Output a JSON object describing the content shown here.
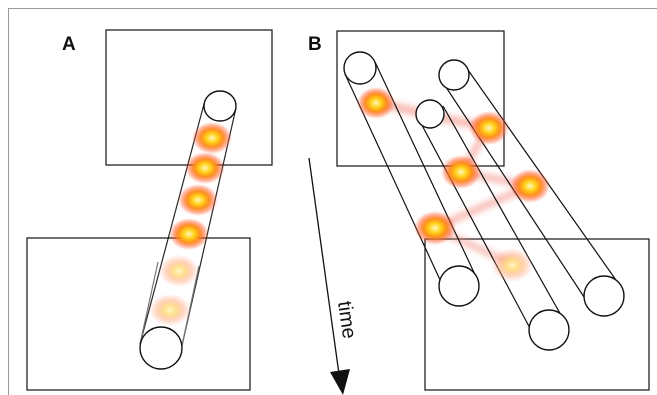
{
  "panels": {
    "a_label": "A",
    "b_label": "B"
  },
  "time_arrow": {
    "label": "time"
  },
  "colors": {
    "stroke": "#111111",
    "blob_core": "#fff6b0",
    "blob_mid": "#ffb400",
    "blob_outer": "#ff5a1e",
    "trail": "#f07a6a",
    "frame": "#9a9a9a"
  },
  "icons": [
    "box-outline",
    "tube-cylinder",
    "glowing-particle",
    "down-arrow"
  ]
}
